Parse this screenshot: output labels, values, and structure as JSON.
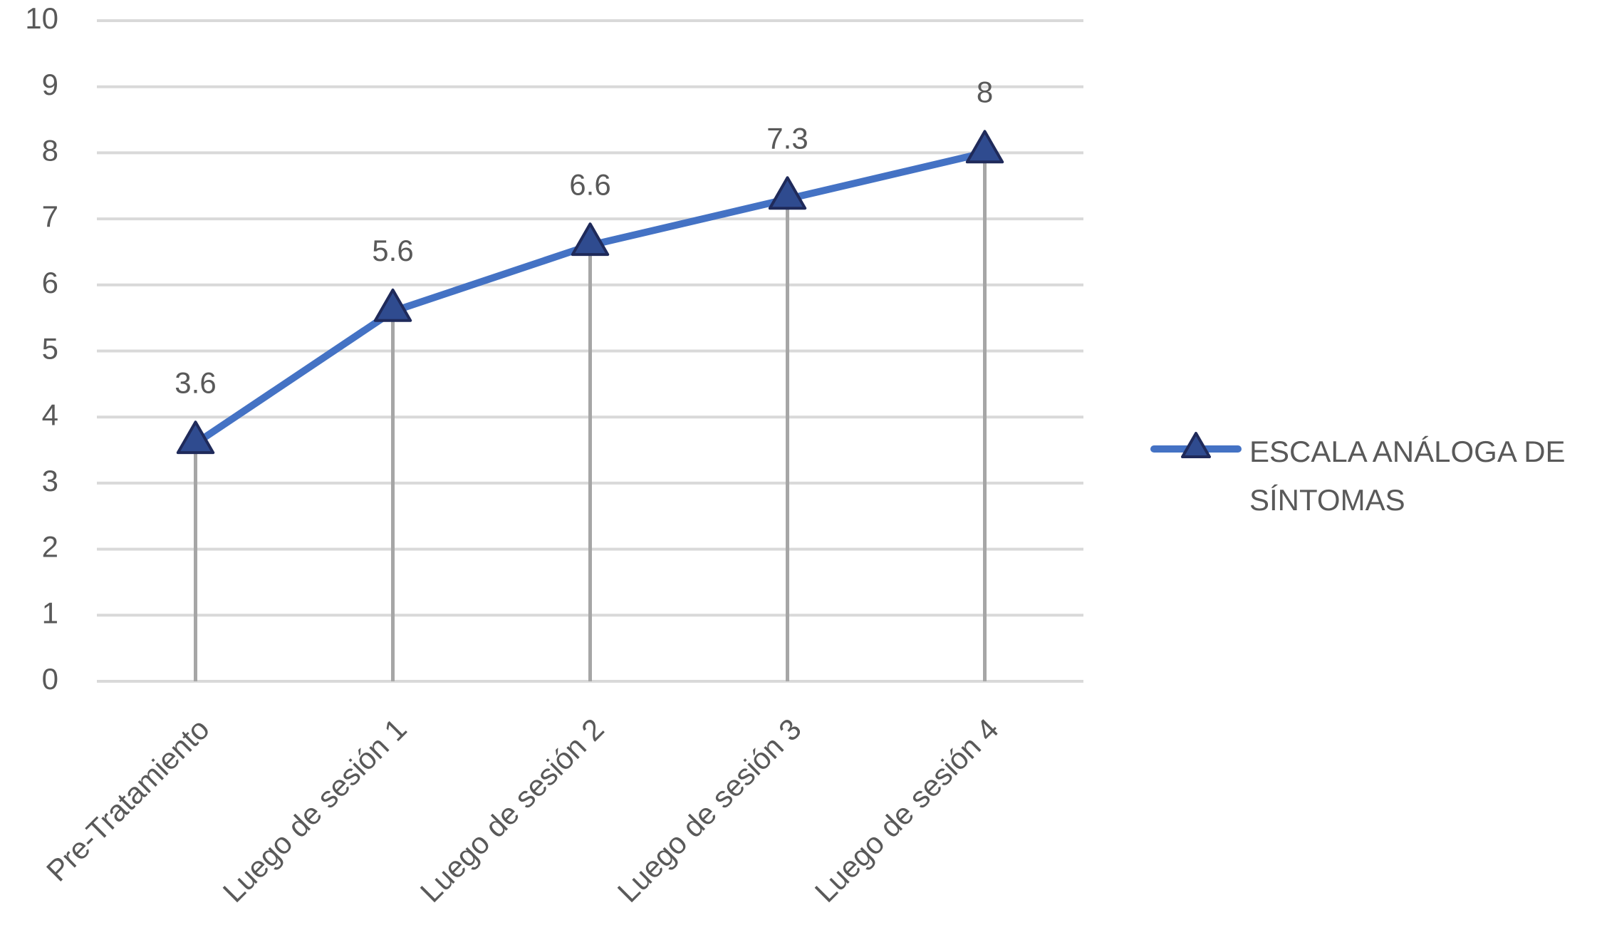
{
  "chart_data": {
    "type": "line",
    "categories": [
      "Pre-Tratamiento",
      "Luego de sesión 1",
      "Luego de sesión 2",
      "Luego de sesión 3",
      "Luego de sesión 4"
    ],
    "series": [
      {
        "name": "ESCALA ANÁLOGA DE SÍNTOMAS",
        "color": "#4472c4",
        "values": [
          3.6,
          5.6,
          6.6,
          7.3,
          8
        ]
      }
    ],
    "ylim": [
      0,
      10
    ],
    "yticks": [
      0,
      1,
      2,
      3,
      4,
      5,
      6,
      7,
      8,
      9,
      10
    ],
    "grid": true,
    "legend": "right",
    "drop_lines": true
  }
}
